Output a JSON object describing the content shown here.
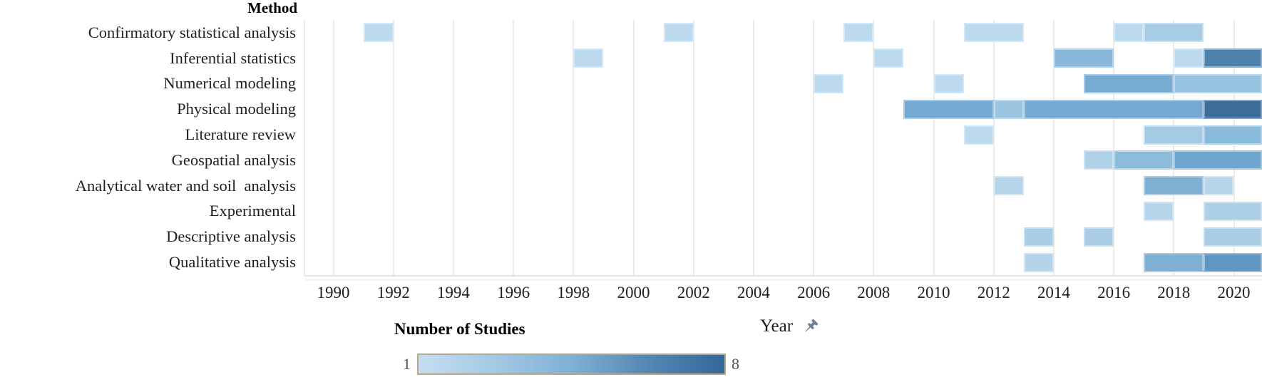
{
  "chart_data": {
    "type": "heatmap",
    "title": "Method",
    "x_axis": {
      "title": "Year",
      "tick_labels": [
        "1990",
        "1992",
        "1994",
        "1996",
        "1998",
        "2000",
        "2002",
        "2004",
        "2006",
        "2008",
        "2010",
        "2012",
        "2014",
        "2016",
        "2018",
        "2020"
      ],
      "tick_years": [
        1990,
        1992,
        1994,
        1996,
        1998,
        2000,
        2002,
        2004,
        2006,
        2008,
        2010,
        2012,
        2014,
        2016,
        2018,
        2020
      ],
      "range_years": [
        1989,
        2021
      ],
      "grid": true
    },
    "y_axis": {
      "header": "Method",
      "categories": [
        "Confirmatory statistical analysis",
        "Inferential statistics",
        "Numerical modeling",
        "Physical modeling",
        "Literature review",
        "Geospatial analysis",
        "Analytical water and soil  analysis",
        "Experimental",
        "Descriptive analysis",
        "Qualitative analysis"
      ]
    },
    "legend": {
      "title": "Number of Studies",
      "min_label": "1",
      "max_label": "8",
      "gradient": [
        "#c6ddf0",
        "#a3c9e4",
        "#7fb0d5",
        "#5587b3",
        "#35689a"
      ],
      "border_color": "#b5a88c",
      "position": "bottom"
    },
    "value_colors": {
      "1": "#bcd9ee",
      "2": "#a7cde6",
      "3": "#8fbedd",
      "4": "#77abd2",
      "5": "#6ea5cf",
      "6": "#4f81ad",
      "7": "#45779f",
      "8": "#3c6d9b"
    },
    "cells": [
      {
        "method": "Confirmatory statistical analysis",
        "year": 1991,
        "span": 1,
        "value": 1,
        "color": "#bcd9ee"
      },
      {
        "method": "Confirmatory statistical analysis",
        "year": 2001,
        "span": 1,
        "value": 1,
        "color": "#bcd9ee"
      },
      {
        "method": "Confirmatory statistical analysis",
        "year": 2007,
        "span": 1,
        "value": 1,
        "color": "#bcd9ee"
      },
      {
        "method": "Confirmatory statistical analysis",
        "year": 2011,
        "span": 2,
        "value": 1,
        "color": "#bcd9ee"
      },
      {
        "method": "Confirmatory statistical analysis",
        "year": 2016,
        "span": 1,
        "value": 1,
        "color": "#bcd9ee"
      },
      {
        "method": "Confirmatory statistical analysis",
        "year": 2017,
        "span": 2,
        "value": 2,
        "color": "#a7cde6"
      },
      {
        "method": "Inferential statistics",
        "year": 1998,
        "span": 1,
        "value": 1,
        "color": "#bcd9ee"
      },
      {
        "method": "Inferential statistics",
        "year": 2008,
        "span": 1,
        "value": 1,
        "color": "#bcd9ee"
      },
      {
        "method": "Inferential statistics",
        "year": 2014,
        "span": 2,
        "value": 3,
        "color": "#89b8da"
      },
      {
        "method": "Inferential statistics",
        "year": 2018,
        "span": 1,
        "value": 1,
        "color": "#bcd9ee"
      },
      {
        "method": "Inferential statistics",
        "year": 2019,
        "span": 2,
        "value": 6,
        "color": "#4f81ad"
      },
      {
        "method": "Numerical modeling",
        "year": 2006,
        "span": 1,
        "value": 1,
        "color": "#bcd9ee"
      },
      {
        "method": "Numerical modeling",
        "year": 2010,
        "span": 1,
        "value": 1,
        "color": "#bcd9ee"
      },
      {
        "method": "Numerical modeling",
        "year": 2015,
        "span": 3,
        "value": 4,
        "color": "#77abd2"
      },
      {
        "method": "Numerical modeling",
        "year": 2018,
        "span": 3,
        "value": 3,
        "color": "#97c2e0"
      },
      {
        "method": "Physical modeling",
        "year": 2009,
        "span": 3,
        "value": 4,
        "color": "#74a9d1"
      },
      {
        "method": "Physical modeling",
        "year": 2012,
        "span": 1,
        "value": 2,
        "color": "#9cc5e1"
      },
      {
        "method": "Physical modeling",
        "year": 2013,
        "span": 6,
        "value": 4,
        "color": "#74a9d1"
      },
      {
        "method": "Physical modeling",
        "year": 2019,
        "span": 2,
        "value": 8,
        "color": "#3c6d9b"
      },
      {
        "method": "Literature review",
        "year": 2011,
        "span": 1,
        "value": 1,
        "color": "#bcd9ee"
      },
      {
        "method": "Literature review",
        "year": 2017,
        "span": 2,
        "value": 2,
        "color": "#a5cbe4"
      },
      {
        "method": "Literature review",
        "year": 2019,
        "span": 2,
        "value": 3,
        "color": "#8abada"
      },
      {
        "method": "Geospatial analysis",
        "year": 2015,
        "span": 1,
        "value": 2,
        "color": "#aed1e7"
      },
      {
        "method": "Geospatial analysis",
        "year": 2016,
        "span": 2,
        "value": 3,
        "color": "#8dbcdb"
      },
      {
        "method": "Geospatial analysis",
        "year": 2018,
        "span": 3,
        "value": 5,
        "color": "#6fa6cf"
      },
      {
        "method": "Analytical water and soil  analysis",
        "year": 2012,
        "span": 1,
        "value": 1,
        "color": "#b7d5ea"
      },
      {
        "method": "Analytical water and soil  analysis",
        "year": 2017,
        "span": 2,
        "value": 4,
        "color": "#7fb0d4"
      },
      {
        "method": "Analytical water and soil  analysis",
        "year": 2019,
        "span": 1,
        "value": 1,
        "color": "#b7d6eb"
      },
      {
        "method": "Experimental",
        "year": 2017,
        "span": 1,
        "value": 1,
        "color": "#b7d5ea"
      },
      {
        "method": "Experimental",
        "year": 2019,
        "span": 2,
        "value": 2,
        "color": "#aed0e7"
      },
      {
        "method": "Descriptive analysis",
        "year": 2013,
        "span": 1,
        "value": 2,
        "color": "#a9cde5"
      },
      {
        "method": "Descriptive analysis",
        "year": 2015,
        "span": 1,
        "value": 2,
        "color": "#a9cde5"
      },
      {
        "method": "Descriptive analysis",
        "year": 2019,
        "span": 2,
        "value": 2,
        "color": "#a9cde5"
      },
      {
        "method": "Qualitative analysis",
        "year": 2013,
        "span": 1,
        "value": 1,
        "color": "#b5d4ea"
      },
      {
        "method": "Qualitative analysis",
        "year": 2017,
        "span": 2,
        "value": 4,
        "color": "#7fb0d4"
      },
      {
        "method": "Qualitative analysis",
        "year": 2019,
        "span": 2,
        "value": 5,
        "color": "#5f96c2"
      }
    ]
  },
  "icons": {
    "pushpin": {
      "name": "pushpin-icon",
      "color": "#6e7f94"
    }
  }
}
